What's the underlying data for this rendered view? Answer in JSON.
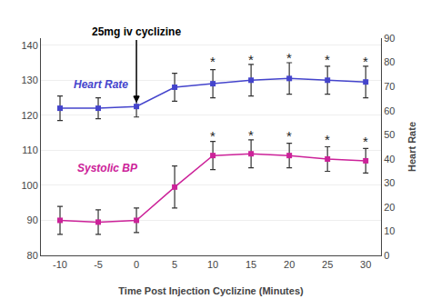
{
  "chart_data": {
    "type": "line",
    "xlabel": "Time Post Injection Cyclizine (Minutes)",
    "y2label": "Heart Rate",
    "x": [
      -10,
      -5,
      0,
      5,
      10,
      15,
      20,
      25,
      30
    ],
    "xlim": [
      -12.5,
      32
    ],
    "xticks": [
      -10,
      -5,
      0,
      5,
      10,
      15,
      20,
      25,
      30
    ],
    "ylim": [
      80,
      142
    ],
    "yticks": [
      80,
      90,
      100,
      110,
      120,
      130,
      140
    ],
    "y2lim": [
      0,
      90
    ],
    "y2ticks": [
      0,
      10,
      20,
      30,
      40,
      50,
      60,
      70,
      80,
      90
    ],
    "grid": true,
    "series": [
      {
        "name": "Heart Rate",
        "color": "#4444cc",
        "marker": "square",
        "values": [
          122.0,
          122.0,
          122.5,
          128.0,
          129.0,
          130.0,
          130.5,
          130.0,
          129.5
        ],
        "errors": [
          3.5,
          3.0,
          3.0,
          4.0,
          4.0,
          4.5,
          4.5,
          4.0,
          4.5
        ],
        "label_x": -8.5,
        "label_y": 126.5
      },
      {
        "name": "Systolic BP",
        "color": "#cc2299",
        "marker": "square",
        "values": [
          90.0,
          89.5,
          90.0,
          99.5,
          108.5,
          109.0,
          108.5,
          107.5,
          107.0
        ],
        "errors": [
          4.0,
          3.5,
          3.5,
          6.0,
          4.0,
          4.0,
          3.5,
          3.5,
          3.5
        ],
        "label_x": -8.0,
        "label_y": 102.5
      }
    ],
    "annotations": [
      {
        "text": "25mg iv cyclizine",
        "x": 0,
        "y": 141.5,
        "arrow_x": 0,
        "arrow_y": 123.5
      },
      {
        "text": "*",
        "x": 10,
        "y": 135.5
      },
      {
        "text": "*",
        "x": 15,
        "y": 136.0
      },
      {
        "text": "*",
        "x": 20,
        "y": 136.5
      },
      {
        "text": "*",
        "x": 25,
        "y": 136.0
      },
      {
        "text": "*",
        "x": 30,
        "y": 135.5
      },
      {
        "text": "*",
        "x": 10,
        "y": 114.0
      },
      {
        "text": "*",
        "x": 15,
        "y": 114.5
      },
      {
        "text": "*",
        "x": 20,
        "y": 114.0
      },
      {
        "text": "*",
        "x": 25,
        "y": 113.0
      },
      {
        "text": "*",
        "x": 30,
        "y": 112.5
      }
    ]
  }
}
